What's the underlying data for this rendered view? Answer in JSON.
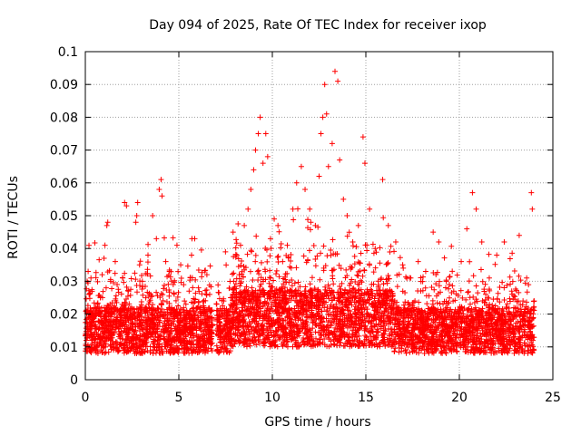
{
  "chart_data": {
    "type": "scatter",
    "title": "Day 094 of 2025, Rate Of TEC Index for receiver ixop",
    "xlabel": "GPS time / hours",
    "ylabel": "ROTI / TECUs",
    "xlim": [
      0,
      25
    ],
    "ylim": [
      0,
      0.1
    ],
    "xticks": [
      0,
      5,
      10,
      15,
      20,
      25
    ],
    "xtick_labels": [
      "0",
      "5",
      "10",
      "15",
      "20",
      "25"
    ],
    "yticks": [
      0,
      0.01,
      0.02,
      0.03,
      0.04,
      0.05,
      0.06,
      0.07,
      0.08,
      0.09,
      0.1
    ],
    "ytick_labels": [
      "0",
      "0.01",
      "0.02",
      "0.03",
      "0.04",
      "0.05",
      "0.06",
      "0.07",
      "0.08",
      "0.09",
      "0.1"
    ],
    "grid": true,
    "marker": "+",
    "color": "#ff0000",
    "data_gaps_hours": [
      [
        6.8,
        7.0
      ]
    ],
    "series": [
      {
        "points": [
          [
            0.05,
            0.012
          ],
          [
            0.1,
            0.03
          ],
          [
            0.15,
            0.033
          ],
          [
            0.2,
            0.026
          ],
          [
            0.3,
            0.031
          ],
          [
            0.35,
            0.018
          ],
          [
            0.45,
            0.014
          ],
          [
            0.55,
            0.022
          ],
          [
            0.7,
            0.02
          ],
          [
            0.8,
            0.025
          ],
          [
            0.9,
            0.032
          ],
          [
            1.0,
            0.037
          ],
          [
            1.05,
            0.041
          ],
          [
            1.15,
            0.047
          ],
          [
            1.2,
            0.048
          ],
          [
            1.35,
            0.03
          ],
          [
            1.5,
            0.022
          ],
          [
            1.6,
            0.036
          ],
          [
            1.7,
            0.029
          ],
          [
            1.85,
            0.021
          ],
          [
            2.0,
            0.031
          ],
          [
            2.1,
            0.054
          ],
          [
            2.2,
            0.053
          ],
          [
            2.3,
            0.027
          ],
          [
            2.5,
            0.016
          ],
          [
            2.7,
            0.048
          ],
          [
            2.75,
            0.05
          ],
          [
            2.8,
            0.054
          ],
          [
            2.9,
            0.035
          ],
          [
            3.05,
            0.03
          ],
          [
            3.2,
            0.019
          ],
          [
            3.35,
            0.038
          ],
          [
            3.5,
            0.026
          ],
          [
            3.6,
            0.05
          ],
          [
            3.8,
            0.043
          ],
          [
            3.95,
            0.058
          ],
          [
            4.05,
            0.061
          ],
          [
            4.1,
            0.056
          ],
          [
            4.3,
            0.036
          ],
          [
            4.5,
            0.033
          ],
          [
            4.7,
            0.029
          ],
          [
            4.9,
            0.041
          ],
          [
            5.1,
            0.035
          ],
          [
            5.3,
            0.024
          ],
          [
            5.55,
            0.027
          ],
          [
            5.7,
            0.043
          ],
          [
            5.85,
            0.043
          ],
          [
            6.05,
            0.028
          ],
          [
            6.3,
            0.022
          ],
          [
            6.5,
            0.032
          ],
          [
            6.65,
            0.026
          ],
          [
            7.2,
            0.019
          ],
          [
            7.4,
            0.024
          ],
          [
            7.65,
            0.021
          ],
          [
            7.9,
            0.045
          ],
          [
            8.1,
            0.038
          ],
          [
            8.3,
            0.041
          ],
          [
            8.5,
            0.047
          ],
          [
            8.7,
            0.052
          ],
          [
            8.85,
            0.058
          ],
          [
            9.0,
            0.064
          ],
          [
            9.1,
            0.07
          ],
          [
            9.25,
            0.075
          ],
          [
            9.35,
            0.08
          ],
          [
            9.5,
            0.066
          ],
          [
            9.65,
            0.075
          ],
          [
            9.75,
            0.068
          ],
          [
            9.9,
            0.043
          ],
          [
            10.1,
            0.049
          ],
          [
            10.3,
            0.047
          ],
          [
            10.55,
            0.036
          ],
          [
            10.8,
            0.041
          ],
          [
            11.1,
            0.052
          ],
          [
            11.3,
            0.06
          ],
          [
            11.55,
            0.065
          ],
          [
            11.75,
            0.058
          ],
          [
            12.0,
            0.052
          ],
          [
            12.3,
            0.047
          ],
          [
            12.5,
            0.062
          ],
          [
            12.6,
            0.075
          ],
          [
            12.7,
            0.08
          ],
          [
            12.8,
            0.09
          ],
          [
            12.9,
            0.081
          ],
          [
            13.0,
            0.065
          ],
          [
            13.2,
            0.072
          ],
          [
            13.35,
            0.094
          ],
          [
            13.5,
            0.091
          ],
          [
            13.6,
            0.067
          ],
          [
            13.8,
            0.055
          ],
          [
            14.0,
            0.05
          ],
          [
            14.3,
            0.042
          ],
          [
            14.6,
            0.047
          ],
          [
            14.85,
            0.074
          ],
          [
            14.95,
            0.066
          ],
          [
            15.2,
            0.052
          ],
          [
            15.5,
            0.04
          ],
          [
            15.9,
            0.061
          ],
          [
            16.2,
            0.047
          ],
          [
            16.6,
            0.042
          ],
          [
            17.0,
            0.034
          ],
          [
            17.4,
            0.031
          ],
          [
            17.8,
            0.036
          ],
          [
            18.2,
            0.033
          ],
          [
            18.6,
            0.045
          ],
          [
            18.9,
            0.042
          ],
          [
            19.3,
            0.03
          ],
          [
            19.7,
            0.027
          ],
          [
            20.1,
            0.036
          ],
          [
            20.4,
            0.046
          ],
          [
            20.7,
            0.057
          ],
          [
            20.9,
            0.052
          ],
          [
            21.2,
            0.042
          ],
          [
            21.6,
            0.031
          ],
          [
            22.0,
            0.038
          ],
          [
            22.4,
            0.042
          ],
          [
            22.8,
            0.027
          ],
          [
            23.2,
            0.044
          ],
          [
            23.6,
            0.031
          ],
          [
            23.85,
            0.057
          ],
          [
            23.9,
            0.052
          ],
          [
            24.0,
            0.024
          ]
        ]
      }
    ]
  }
}
